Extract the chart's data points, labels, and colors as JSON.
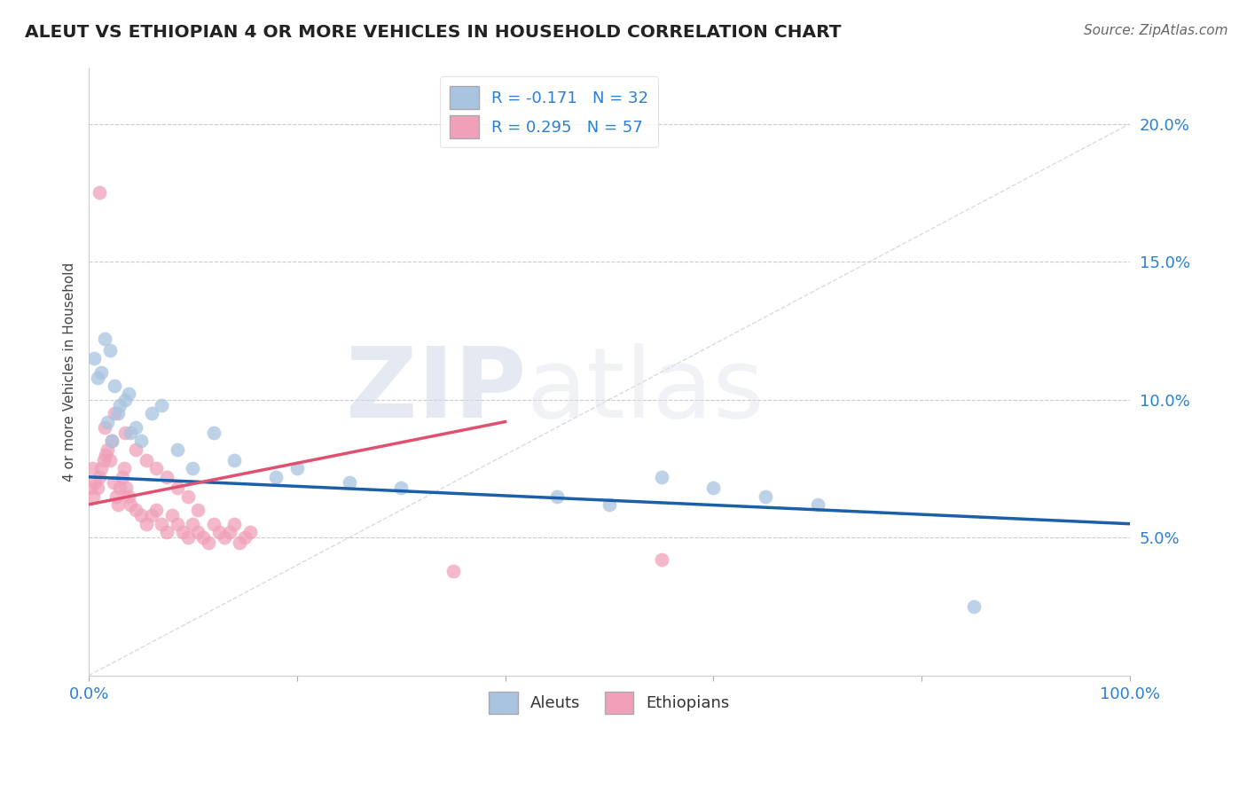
{
  "title": "ALEUT VS ETHIOPIAN 4 OR MORE VEHICLES IN HOUSEHOLD CORRELATION CHART",
  "source": "Source: ZipAtlas.com",
  "ylabel": "4 or more Vehicles in Household",
  "xlim": [
    0,
    100
  ],
  "ylim": [
    0,
    22
  ],
  "aleuts_R": -0.171,
  "aleuts_N": 32,
  "ethiopians_R": 0.295,
  "ethiopians_N": 57,
  "aleut_color": "#a8c4e0",
  "ethiopian_color": "#f0a0b8",
  "aleut_line_color": "#1a5fa8",
  "ethiopian_line_color": "#e05070",
  "diagonal_color": "#cccccc",
  "aleut_line_x0": 0,
  "aleut_line_y0": 7.2,
  "aleut_line_x1": 100,
  "aleut_line_y1": 5.5,
  "eth_line_x0": 0,
  "eth_line_y0": 6.2,
  "eth_line_x1": 40,
  "eth_line_y1": 9.2,
  "aleuts_x": [
    0.5,
    1.5,
    2.0,
    0.8,
    1.2,
    2.5,
    3.0,
    2.8,
    3.8,
    4.5,
    4.0,
    6.0,
    7.0,
    5.0,
    12.0,
    8.5,
    14.0,
    10.0,
    18.0,
    20.0,
    25.0,
    30.0,
    45.0,
    50.0,
    55.0,
    60.0,
    65.0,
    70.0,
    85.0,
    3.5,
    1.8,
    2.2
  ],
  "aleuts_y": [
    11.5,
    12.2,
    11.8,
    10.8,
    11.0,
    10.5,
    9.8,
    9.5,
    10.2,
    9.0,
    8.8,
    9.5,
    9.8,
    8.5,
    8.8,
    8.2,
    7.8,
    7.5,
    7.2,
    7.5,
    7.0,
    6.8,
    6.5,
    6.2,
    7.2,
    6.8,
    6.5,
    6.2,
    2.5,
    10.0,
    9.2,
    8.5
  ],
  "ethiopians_x": [
    0.2,
    0.4,
    0.6,
    0.8,
    1.0,
    1.2,
    1.4,
    1.6,
    1.8,
    2.0,
    2.2,
    2.4,
    2.6,
    2.8,
    3.0,
    3.2,
    3.4,
    3.6,
    3.8,
    4.0,
    4.5,
    5.0,
    5.5,
    6.0,
    6.5,
    7.0,
    7.5,
    8.0,
    8.5,
    9.0,
    9.5,
    10.0,
    10.5,
    11.0,
    11.5,
    12.0,
    12.5,
    13.0,
    13.5,
    14.0,
    14.5,
    15.0,
    15.5,
    1.5,
    2.5,
    3.5,
    4.5,
    5.5,
    6.5,
    7.5,
    8.5,
    9.5,
    10.5,
    35.0,
    55.0,
    0.3,
    1.0
  ],
  "ethiopians_y": [
    6.8,
    6.5,
    7.0,
    6.8,
    7.2,
    7.5,
    7.8,
    8.0,
    8.2,
    7.8,
    8.5,
    7.0,
    6.5,
    6.2,
    6.8,
    7.2,
    7.5,
    6.8,
    6.5,
    6.2,
    6.0,
    5.8,
    5.5,
    5.8,
    6.0,
    5.5,
    5.2,
    5.8,
    5.5,
    5.2,
    5.0,
    5.5,
    5.2,
    5.0,
    4.8,
    5.5,
    5.2,
    5.0,
    5.2,
    5.5,
    4.8,
    5.0,
    5.2,
    9.0,
    9.5,
    8.8,
    8.2,
    7.8,
    7.5,
    7.2,
    6.8,
    6.5,
    6.0,
    3.8,
    4.2,
    7.5,
    17.5
  ],
  "watermark_zip": "ZIP",
  "watermark_atlas": "atlas",
  "background_color": "#ffffff"
}
